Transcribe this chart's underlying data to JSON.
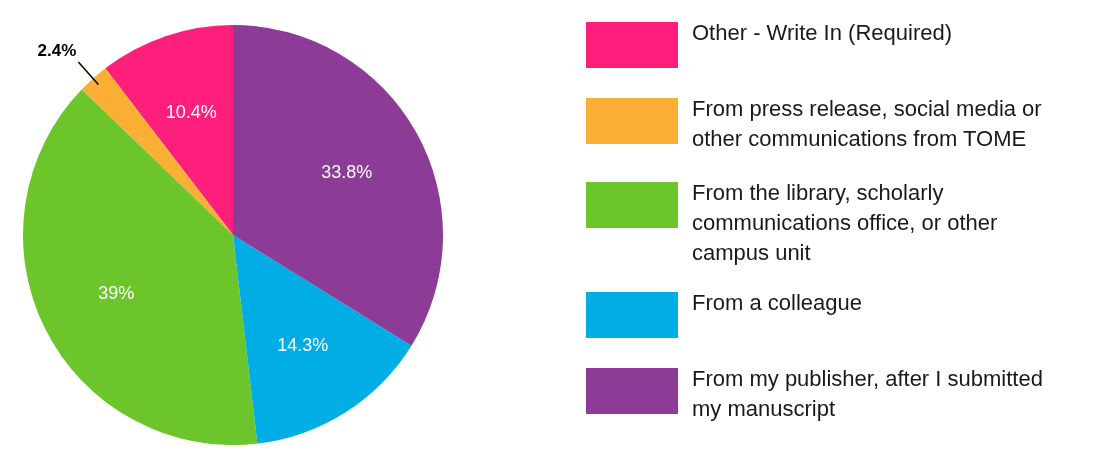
{
  "chart_data": {
    "type": "pie",
    "categories": [
      "Other - Write In (Required)",
      "From press release, social media or other communications from TOME",
      "From the library, scholarly communications office, or other campus unit",
      "From a colleague",
      "From my publisher, after I submitted my manuscript"
    ],
    "values": [
      10.4,
      2.4,
      39,
      14.3,
      33.8
    ],
    "colors": [
      "#fe1f7c",
      "#fcaf35",
      "#6bc52b",
      "#01ade5",
      "#8c3c97"
    ],
    "value_labels": [
      "10.4%",
      "2.4%",
      "39%",
      "14.3%",
      "33.8%"
    ],
    "legend": "right"
  }
}
